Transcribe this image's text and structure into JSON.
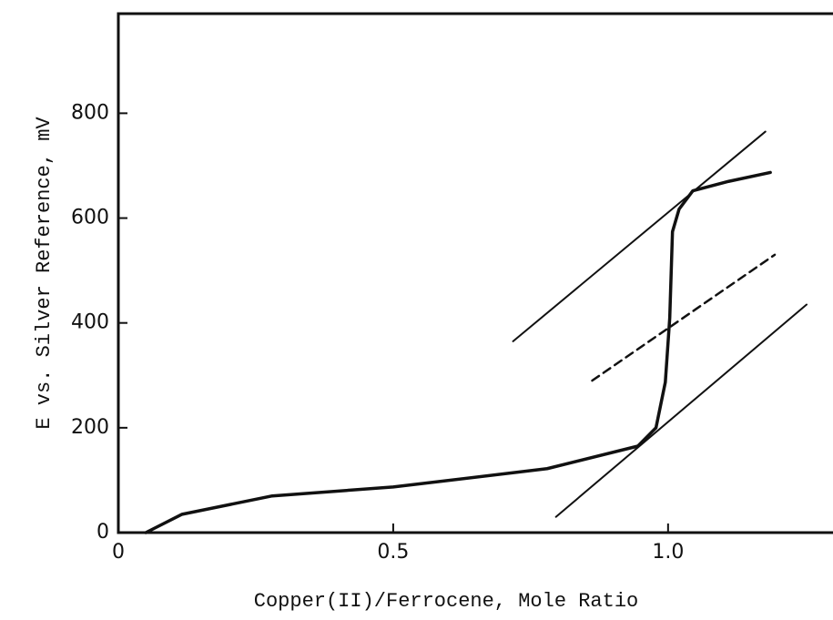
{
  "chart_data": {
    "type": "line",
    "x_label": "Copper(II)/Ferrocene, Mole Ratio",
    "y_label": "E vs. Silver Reference, mV",
    "xlim": [
      0,
      1.3
    ],
    "ylim": [
      0,
      990
    ],
    "xticks": [
      0,
      0.5,
      {
        "value": 1,
        "label": "1.0"
      }
    ],
    "yticks": [
      0,
      200,
      400,
      600,
      800
    ],
    "series": [
      {
        "color": "#111111",
        "style": "solid",
        "width": 3.5,
        "x": [
          0.05,
          0.116,
          0.28,
          0.5,
          0.78,
          0.945,
          0.978,
          0.995,
          1.003,
          1.008,
          1.02,
          1.045,
          1.11,
          1.186
        ],
        "values": [
          0,
          35,
          70,
          87,
          122,
          165,
          200,
          287,
          409,
          574,
          617,
          652,
          670,
          687
        ]
      },
      {
        "color": "#111111",
        "style": "solid",
        "width": 2,
        "x": [
          0.718,
          1.177
        ],
        "values": [
          365,
          765
        ]
      },
      {
        "color": "#111111",
        "style": "solid",
        "width": 2,
        "x": [
          0.796,
          1.252
        ],
        "values": [
          30,
          435
        ]
      },
      {
        "color": "#111111",
        "style": "dashed",
        "width": 2.5,
        "x": [
          0.862,
          1.194
        ],
        "values": [
          290,
          530
        ]
      }
    ]
  }
}
